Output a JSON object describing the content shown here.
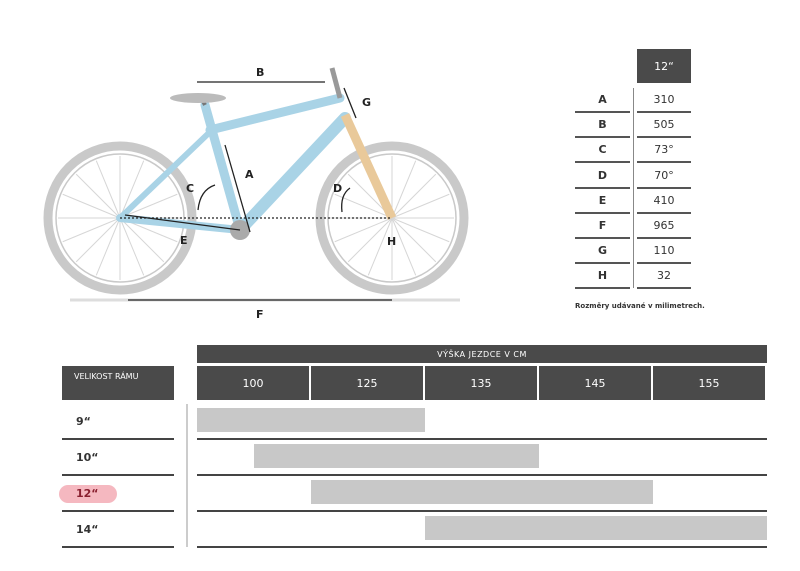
{
  "geometry": {
    "size_header": "12“",
    "rows": [
      {
        "key": "A",
        "value": "310"
      },
      {
        "key": "B",
        "value": "505"
      },
      {
        "key": "C",
        "value": "73°"
      },
      {
        "key": "D",
        "value": "70°"
      },
      {
        "key": "E",
        "value": "410"
      },
      {
        "key": "F",
        "value": "965"
      },
      {
        "key": "G",
        "value": "110"
      },
      {
        "key": "H",
        "value": "32"
      }
    ],
    "note": "Rozměry udávané v milimetrech."
  },
  "bike": {
    "frame_color": "#a9d3e6",
    "fork_color": "#e9c99a",
    "labels": {
      "A": "A",
      "B": "B",
      "C": "C",
      "D": "D",
      "E": "E",
      "F": "F",
      "G": "G",
      "H": "H"
    }
  },
  "sizing": {
    "title": "VÝŠKA JEZDCE V CM",
    "frame_header": "VELIKOST RÁMU",
    "heights": [
      "100",
      "125",
      "135",
      "145",
      "155"
    ],
    "rows": [
      {
        "size": "9“",
        "from_col": 0,
        "to_col": 2,
        "highlight": false
      },
      {
        "size": "10“",
        "from_col": 0.5,
        "to_col": 3,
        "highlight": false
      },
      {
        "size": "12“",
        "from_col": 1,
        "to_col": 4,
        "highlight": true
      },
      {
        "size": "14“",
        "from_col": 2,
        "to_col": 5,
        "highlight": false
      }
    ],
    "highlight_color": "#f5b8c0"
  }
}
